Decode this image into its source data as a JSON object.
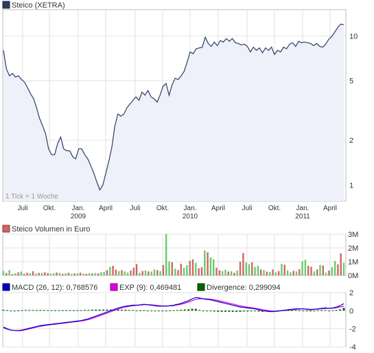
{
  "colors": {
    "price_line": "#2c3e60",
    "price_fill": "#eef0fa",
    "vol_up": "#66cc66",
    "vol_down": "#cc6666",
    "macd": "#0000cc",
    "exp": "#dd00dd",
    "divergence": "#006600",
    "grid": "#e2e2e2",
    "border": "#bcbcbc"
  },
  "chart_data": [
    {
      "type": "line",
      "title": "Steico (XETRA)",
      "scale": "log",
      "grid": true,
      "yticks": [
        1,
        2,
        5,
        10
      ],
      "ylim": [
        0.78,
        15
      ],
      "note": "1 Tick = 1 Woche",
      "xticks": [
        {
          "label": "Juli",
          "year": ""
        },
        {
          "label": "Okt.",
          "year": ""
        },
        {
          "label": "Jan.",
          "year": "2009"
        },
        {
          "label": "April",
          "year": ""
        },
        {
          "label": "Juli",
          "year": ""
        },
        {
          "label": "Okt.",
          "year": ""
        },
        {
          "label": "Jan.",
          "year": "2010"
        },
        {
          "label": "April",
          "year": ""
        },
        {
          "label": "Juli",
          "year": ""
        },
        {
          "label": "Okt.",
          "year": ""
        },
        {
          "label": "Jan.",
          "year": "2011"
        },
        {
          "label": "April",
          "year": ""
        }
      ],
      "series": [
        {
          "name": "Steico (XETRA)",
          "values": [
            8.0,
            6.0,
            5.4,
            5.6,
            5.3,
            5.4,
            5.1,
            4.9,
            4.5,
            4.1,
            3.8,
            3.3,
            2.8,
            2.5,
            2.2,
            1.75,
            1.6,
            1.6,
            1.9,
            2.1,
            1.75,
            1.7,
            1.7,
            1.55,
            1.5,
            1.75,
            1.75,
            1.6,
            1.5,
            1.35,
            1.2,
            1.05,
            0.93,
            1.0,
            1.2,
            1.45,
            1.8,
            2.5,
            3.0,
            2.9,
            3.0,
            3.3,
            3.5,
            3.7,
            3.9,
            3.7,
            4.2,
            4.0,
            4.3,
            3.9,
            3.8,
            3.6,
            4.0,
            4.6,
            4.8,
            4.0,
            4.7,
            5.2,
            5.1,
            5.4,
            5.8,
            6.7,
            7.8,
            7.6,
            8.2,
            8.3,
            8.4,
            9.8,
            8.9,
            8.5,
            9.1,
            8.6,
            9.3,
            9.1,
            9.6,
            9.2,
            9.6,
            9.0,
            8.9,
            8.7,
            8.8,
            8.5,
            7.8,
            8.4,
            8.0,
            8.3,
            7.7,
            8.3,
            8.0,
            8.4,
            7.5,
            8.0,
            7.8,
            8.4,
            8.2,
            8.8,
            9.0,
            8.5,
            9.2,
            9.0,
            9.1,
            9.0,
            8.9,
            8.6,
            8.9,
            8.5,
            8.4,
            8.8,
            9.5,
            9.9,
            10.6,
            11.4,
            12.0,
            11.9
          ]
        }
      ]
    },
    {
      "type": "bar",
      "title": "Steico Volumen in Euro",
      "yticks": [
        "3M",
        "2M",
        "1M",
        "0M"
      ],
      "ylim": [
        0,
        3000000
      ],
      "series": [
        {
          "name": "Steico Volumen in Euro",
          "values": [
            320000,
            180000,
            380000,
            90000,
            150000,
            220000,
            280000,
            110000,
            200000,
            160000,
            300000,
            140000,
            180000,
            190000,
            230000,
            170000,
            130000,
            150000,
            210000,
            180000,
            120000,
            160000,
            190000,
            110000,
            140000,
            150000,
            200000,
            130000,
            120000,
            160000,
            140000,
            170000,
            150000,
            230000,
            260000,
            380000,
            610000,
            700000,
            420000,
            320000,
            380000,
            290000,
            200000,
            350000,
            560000,
            830000,
            190000,
            320000,
            360000,
            290000,
            280000,
            430000,
            380000,
            310000,
            760000,
            3050000,
            1020000,
            960000,
            480000,
            390000,
            850000,
            560000,
            740000,
            1060000,
            1170000,
            900000,
            520000,
            590000,
            1820000,
            1680000,
            1300000,
            1170000,
            560000,
            370000,
            320000,
            410000,
            280000,
            300000,
            190000,
            350000,
            1000000,
            1630000,
            940000,
            820000,
            950000,
            620000,
            700000,
            430000,
            390000,
            280000,
            250000,
            430000,
            210000,
            320000,
            840000,
            780000,
            360000,
            220000,
            340000,
            290000,
            450000,
            1020000,
            1140000,
            700000,
            630000,
            290000,
            440000,
            760000,
            720000,
            190000,
            350000,
            600000,
            1050000,
            800000,
            1600000,
            920000
          ],
          "direction": [
            "up",
            "down",
            "up",
            "down",
            "up",
            "down",
            "up",
            "down",
            "down",
            "up",
            "down",
            "up",
            "down",
            "up",
            "down",
            "down",
            "up",
            "up",
            "down",
            "up",
            "down",
            "up",
            "down",
            "up",
            "down",
            "up",
            "down",
            "up",
            "down",
            "up",
            "down",
            "up",
            "down",
            "up",
            "up",
            "down",
            "up",
            "down",
            "down",
            "up",
            "down",
            "up",
            "up",
            "down",
            "down",
            "down",
            "up",
            "down",
            "up",
            "down",
            "up",
            "up",
            "down",
            "up",
            "down",
            "up",
            "up",
            "down",
            "up",
            "down",
            "down",
            "up",
            "up",
            "down",
            "down",
            "up",
            "down",
            "down",
            "up",
            "down",
            "up",
            "up",
            "down",
            "down",
            "up",
            "up",
            "down",
            "up",
            "down",
            "up",
            "down",
            "down",
            "up",
            "up",
            "down",
            "up",
            "up",
            "down",
            "up",
            "down",
            "up",
            "down",
            "up",
            "down",
            "up",
            "down",
            "up",
            "up",
            "down",
            "up",
            "down",
            "up",
            "up",
            "down",
            "down",
            "up",
            "down",
            "up",
            "down",
            "up",
            "down",
            "up",
            "up",
            "down",
            "down",
            "up"
          ]
        }
      ]
    },
    {
      "type": "line",
      "title": "MACD",
      "yticks": [
        2,
        0,
        -2,
        -4
      ],
      "ylim": [
        -4,
        2
      ],
      "series": [
        {
          "name": "MACD (26, 12): 0,768576",
          "values": [
            -1.8,
            -2.0,
            -2.15,
            -2.2,
            -2.2,
            -2.15,
            -2.05,
            -1.95,
            -1.85,
            -1.75,
            -1.65,
            -1.6,
            -1.55,
            -1.5,
            -1.45,
            -1.4,
            -1.35,
            -1.3,
            -1.25,
            -1.2,
            -1.15,
            -1.1,
            -1.0,
            -0.9,
            -0.75,
            -0.6,
            -0.45,
            -0.3,
            -0.15,
            0.0,
            0.15,
            0.3,
            0.4,
            0.5,
            0.55,
            0.6,
            0.6,
            0.65,
            0.7,
            0.65,
            0.6,
            0.55,
            0.5,
            0.5,
            0.5,
            0.55,
            0.6,
            0.7,
            0.8,
            0.95,
            1.1,
            1.3,
            1.45,
            1.4,
            1.3,
            1.25,
            1.2,
            1.1,
            1.0,
            0.9,
            0.8,
            0.7,
            0.6,
            0.5,
            0.4,
            0.35,
            0.3,
            0.25,
            0.2,
            0.1,
            0.0,
            -0.05,
            -0.1,
            -0.1,
            -0.05,
            0.0,
            0.05,
            0.1,
            0.15,
            0.2,
            0.2,
            0.2,
            0.15,
            0.1,
            0.15,
            0.2,
            0.25,
            0.3,
            0.25,
            0.3,
            0.4,
            0.55,
            0.77
          ]
        },
        {
          "name": "EXP (9): 0,469481",
          "values": [
            -1.9,
            -2.05,
            -2.15,
            -2.2,
            -2.22,
            -2.2,
            -2.12,
            -2.02,
            -1.92,
            -1.82,
            -1.73,
            -1.66,
            -1.6,
            -1.55,
            -1.5,
            -1.45,
            -1.4,
            -1.35,
            -1.3,
            -1.25,
            -1.2,
            -1.15,
            -1.08,
            -0.98,
            -0.86,
            -0.72,
            -0.57,
            -0.42,
            -0.27,
            -0.12,
            0.03,
            0.18,
            0.3,
            0.4,
            0.48,
            0.54,
            0.58,
            0.62,
            0.66,
            0.66,
            0.64,
            0.6,
            0.56,
            0.53,
            0.52,
            0.53,
            0.56,
            0.63,
            0.71,
            0.82,
            0.95,
            1.1,
            1.25,
            1.32,
            1.33,
            1.3,
            1.26,
            1.2,
            1.12,
            1.03,
            0.93,
            0.83,
            0.73,
            0.63,
            0.53,
            0.45,
            0.39,
            0.33,
            0.27,
            0.2,
            0.12,
            0.05,
            -0.02,
            -0.06,
            -0.06,
            -0.03,
            0.01,
            0.06,
            0.1,
            0.14,
            0.17,
            0.19,
            0.18,
            0.15,
            0.15,
            0.17,
            0.2,
            0.24,
            0.25,
            0.27,
            0.32,
            0.41,
            0.47
          ]
        },
        {
          "name": "Divergence: 0,299094",
          "type": "bar",
          "values": [
            0.1,
            0.05,
            0.0,
            0.0,
            0.02,
            0.05,
            0.07,
            0.07,
            0.07,
            0.07,
            0.08,
            0.06,
            0.05,
            0.05,
            0.05,
            0.05,
            0.05,
            0.05,
            0.05,
            0.05,
            0.05,
            0.05,
            0.08,
            0.08,
            0.11,
            0.12,
            0.12,
            0.12,
            0.12,
            0.12,
            0.12,
            0.12,
            0.1,
            0.1,
            0.07,
            0.06,
            0.02,
            0.03,
            0.04,
            -0.01,
            -0.04,
            -0.05,
            -0.06,
            -0.03,
            -0.02,
            0.02,
            0.04,
            0.07,
            0.09,
            0.13,
            0.15,
            0.2,
            0.2,
            0.08,
            -0.03,
            -0.05,
            -0.06,
            -0.1,
            -0.12,
            -0.13,
            -0.13,
            -0.13,
            -0.13,
            -0.13,
            -0.13,
            -0.1,
            -0.09,
            -0.08,
            -0.07,
            -0.1,
            -0.12,
            -0.1,
            -0.08,
            -0.04,
            0.01,
            0.03,
            0.04,
            0.04,
            0.05,
            0.06,
            0.03,
            0.01,
            -0.03,
            -0.05,
            0.0,
            0.03,
            0.05,
            0.06,
            0.0,
            0.03,
            0.08,
            0.14,
            0.3
          ]
        }
      ]
    }
  ]
}
